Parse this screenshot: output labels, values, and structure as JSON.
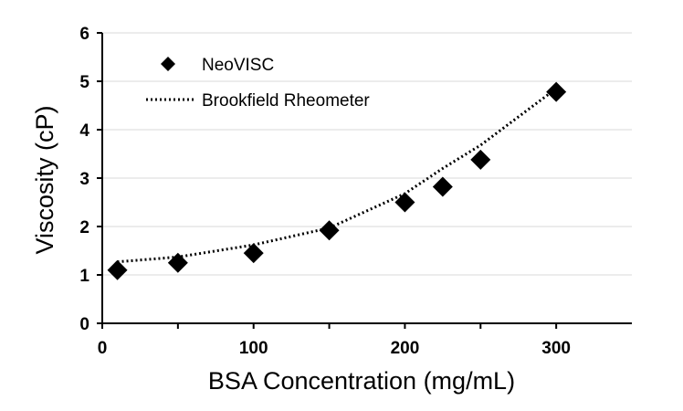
{
  "chart_data": {
    "type": "scatter",
    "xlabel": "BSA Concentration  (mg/mL)",
    "ylabel": "Viscosity  (cP)",
    "xlim": [
      0,
      350
    ],
    "ylim": [
      0,
      6
    ],
    "x_ticks": [
      0,
      100,
      200,
      300
    ],
    "y_ticks": [
      0,
      1,
      2,
      3,
      4,
      5,
      6
    ],
    "grid": "horizontal",
    "legend_position": "top-left",
    "series": [
      {
        "name": "NeoVISC",
        "style": "diamond-markers",
        "color": "#000000",
        "x": [
          10,
          50,
          100,
          150,
          200,
          225,
          250,
          300
        ],
        "y": [
          1.1,
          1.25,
          1.45,
          1.92,
          2.5,
          2.82,
          3.38,
          4.78
        ]
      },
      {
        "name": "Brookfield Rheometer",
        "style": "dotted-line",
        "color": "#000000",
        "x": [
          10,
          50,
          100,
          150,
          200,
          225,
          250,
          300
        ],
        "y": [
          1.27,
          1.37,
          1.62,
          1.97,
          2.68,
          3.2,
          3.68,
          4.85
        ]
      }
    ]
  }
}
